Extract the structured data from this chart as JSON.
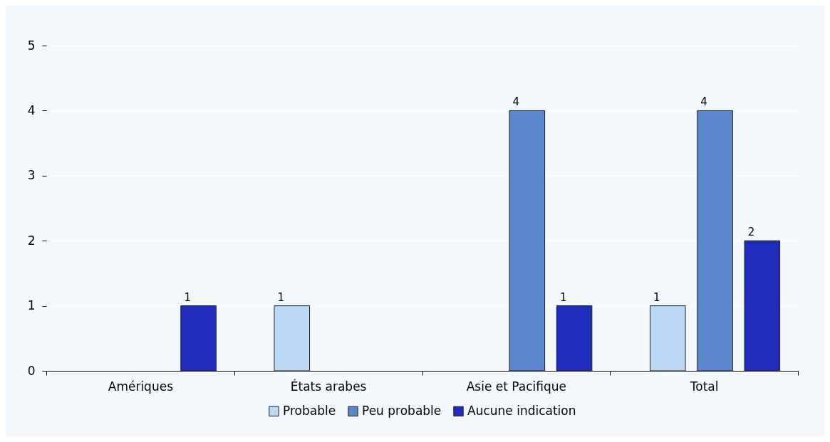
{
  "chart_data": {
    "type": "bar",
    "categories": [
      "Amériques",
      "États arabes",
      "Asie et Pacifique",
      "Total"
    ],
    "series": [
      {
        "name": "Probable",
        "color": "#bdd9f5",
        "values": [
          null,
          1,
          null,
          1
        ]
      },
      {
        "name": "Peu probable",
        "color": "#5b88cc",
        "values": [
          null,
          null,
          4,
          4
        ]
      },
      {
        "name": "Aucune indication",
        "color": "#1f2bbb",
        "values": [
          1,
          null,
          1,
          2
        ]
      }
    ],
    "ylim": [
      0,
      5
    ],
    "yticks": [
      0,
      1,
      2,
      3,
      4,
      5
    ],
    "grid": "y",
    "legend": "bottom",
    "data_labels": true
  }
}
